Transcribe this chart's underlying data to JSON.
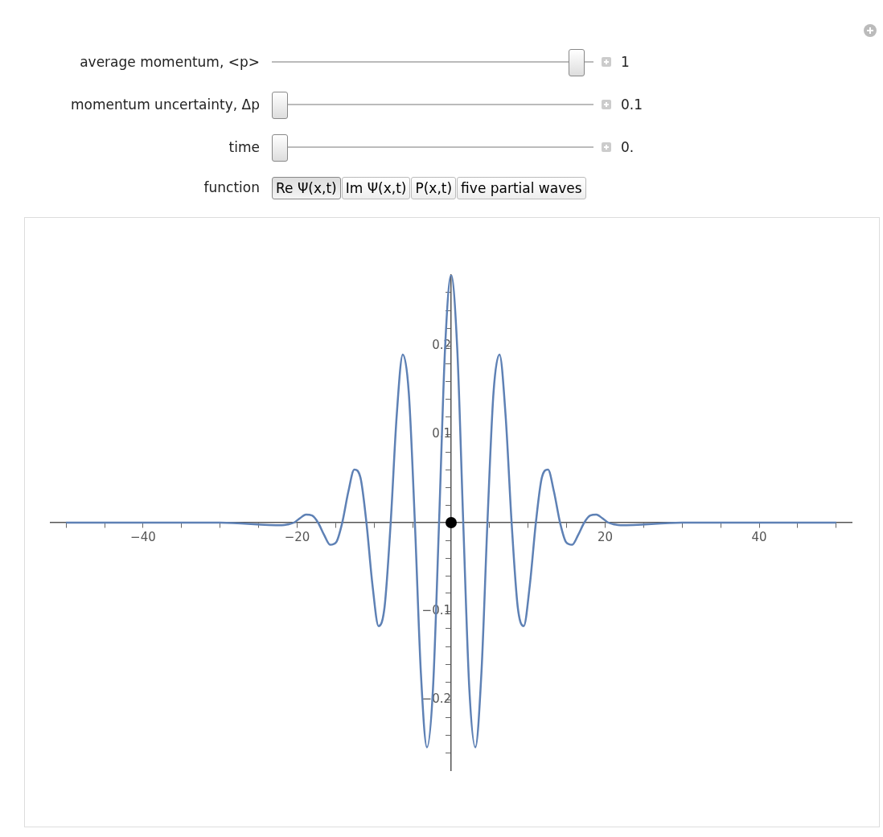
{
  "chart_data": {
    "type": "line",
    "annotations": [
      "average momentum, <p>",
      "1",
      "momentum uncertainty, Δp",
      "0.1",
      "time",
      "0.",
      "function",
      "Re Ψ(x,t)",
      "Im Ψ(x,t)",
      "P(x,t)",
      "five partial waves"
    ],
    "xlim": [
      -52,
      52
    ],
    "xticks": [
      {
        "value": -50,
        "label": null
      },
      {
        "value": -45,
        "label": null
      },
      -40,
      {
        "value": -35,
        "label": null
      },
      {
        "value": -30,
        "label": null
      },
      {
        "value": -25,
        "label": null
      },
      -20,
      {
        "value": -15,
        "label": null
      },
      {
        "value": -10,
        "label": null
      },
      {
        "value": -5,
        "label": null
      },
      {
        "value": 5,
        "label": null
      },
      {
        "value": 10,
        "label": null
      },
      {
        "value": 15,
        "label": null
      },
      20,
      {
        "value": 25,
        "label": null
      },
      {
        "value": 30,
        "label": null
      },
      {
        "value": 35,
        "label": null
      },
      40,
      {
        "value": 45,
        "label": null
      },
      {
        "value": 50,
        "label": null
      }
    ],
    "ylim": [
      -0.28,
      0.28
    ],
    "yticks": [
      {
        "value": -0.26,
        "label": null
      },
      {
        "value": -0.24,
        "label": null
      },
      {
        "value": -0.22,
        "label": null
      },
      -0.2,
      {
        "value": -0.18,
        "label": null
      },
      {
        "value": -0.16,
        "label": null
      },
      {
        "value": -0.14,
        "label": null
      },
      {
        "value": -0.12,
        "label": null
      },
      -0.1,
      {
        "value": -0.08,
        "label": null
      },
      {
        "value": -0.06,
        "label": null
      },
      {
        "value": -0.04,
        "label": null
      },
      {
        "value": -0.02,
        "label": null
      },
      {
        "value": 0.02,
        "label": null
      },
      {
        "value": 0.04,
        "label": null
      },
      {
        "value": 0.06,
        "label": null
      },
      {
        "value": 0.08,
        "label": null
      },
      0.1,
      {
        "value": 0.12,
        "label": null
      },
      {
        "value": 0.14,
        "label": null
      },
      {
        "value": 0.16,
        "label": null
      },
      {
        "value": 0.18,
        "label": null
      },
      0.2,
      {
        "value": 0.22,
        "label": null
      },
      {
        "value": 0.24,
        "label": null
      },
      {
        "value": 0.26,
        "label": null
      }
    ],
    "series": [
      {
        "color": "#5e81b5",
        "x": [
          -50,
          -30,
          -21.99,
          -21.21,
          -20.42,
          -19.63,
          -18.85,
          -18.06,
          -17.28,
          -16.49,
          -15.71,
          -14.92,
          -14.14,
          -13.35,
          -12.57,
          -11.78,
          -11.0,
          -10.21,
          -9.42,
          -8.64,
          -7.85,
          -7.07,
          -6.28,
          -5.5,
          -4.71,
          -3.93,
          -3.14,
          -2.36,
          -1.57,
          -0.79,
          0,
          0.79,
          1.57,
          2.36,
          3.14,
          3.93,
          4.71,
          5.5,
          6.28,
          7.07,
          7.85,
          8.64,
          9.42,
          10.21,
          11.0,
          11.78,
          12.57,
          13.35,
          14.14,
          14.92,
          15.71,
          16.49,
          17.28,
          18.06,
          18.85,
          19.63,
          20.42,
          21.21,
          21.99,
          30,
          50
        ],
        "values": [
          0,
          0,
          -0.003,
          -0.002,
          0,
          0.005,
          0.009,
          0.008,
          0,
          -0.014,
          -0.025,
          -0.022,
          0,
          0.035,
          0.06,
          0.051,
          0,
          -0.071,
          -0.117,
          -0.095,
          0,
          0.121,
          0.19,
          0.147,
          0,
          -0.17,
          -0.254,
          -0.188,
          0,
          0.197,
          0.28,
          0.197,
          0,
          -0.188,
          -0.254,
          -0.17,
          0,
          0.147,
          0.19,
          0.121,
          0,
          -0.095,
          -0.117,
          -0.071,
          0,
          0.051,
          0.06,
          0.035,
          0,
          -0.022,
          -0.025,
          -0.014,
          0,
          0.008,
          0.009,
          0.005,
          0,
          -0.002,
          -0.003,
          0,
          0
        ]
      },
      {
        "type": "scatter",
        "color": "#000000",
        "marker": "circle",
        "x": [
          0
        ],
        "values": [
          0
        ]
      }
    ]
  }
}
